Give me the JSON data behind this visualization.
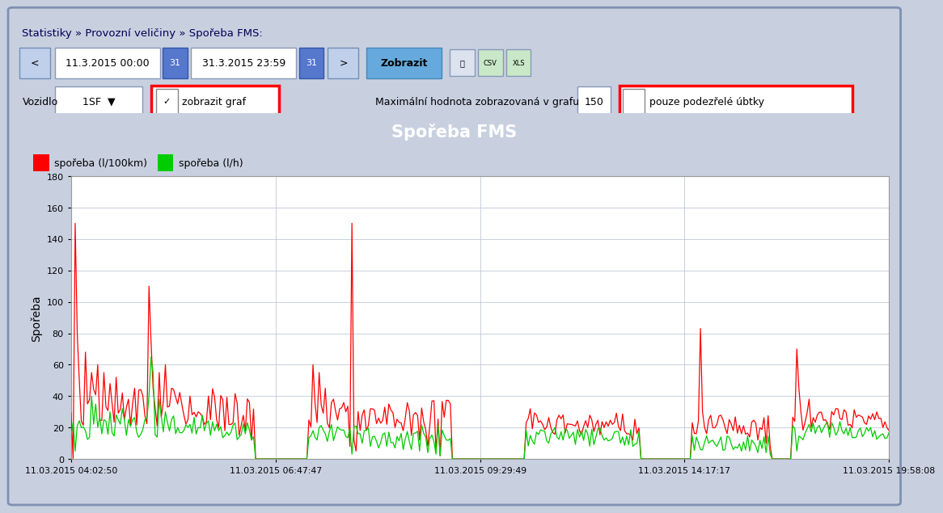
{
  "title": "Spořeba FMS",
  "ylabel": "Spořeba",
  "legend_red": "spořeba (l/100km)",
  "legend_green": "spořeba (l/h)",
  "yticks": [
    0,
    20,
    40,
    60,
    80,
    100,
    120,
    140,
    160,
    180
  ],
  "ylim": [
    0,
    180
  ],
  "xtick_labels": [
    "11.03.2015 04:02:50",
    "11.03.2015 06:47:47",
    "11.03.2015 09:29:49",
    "11.03.2015 14:17:17",
    "11.03.2015 19:58:08"
  ],
  "title_bg_color": "#1a1acc",
  "title_text_color": "#ffffff",
  "chart_bg_color": "#dce3ef",
  "plot_bg_color": "#ffffff",
  "grid_color": "#c0c8d8",
  "header_bg_color": "#dce3ef",
  "outer_bg_color": "#c8d0e0",
  "red_color": "#ff0000",
  "green_color": "#00cc00",
  "header_text": "Statistiky » Provozní veličiny » Spořeba FMS:",
  "date1": "11.3.2015 00:00",
  "date2": "31.3.2015 23:59",
  "vozidlo_label": "Vozidlo",
  "vozidlo_value": "1SF",
  "max_value_label": "Maximální hodnota zobrazovaná v grafu",
  "max_value": "150",
  "zobrazit": "Zobrazit",
  "zobrazit_graf": "zobrazit graf",
  "pouze_podezrele": "pouze podezřelé úbtky"
}
